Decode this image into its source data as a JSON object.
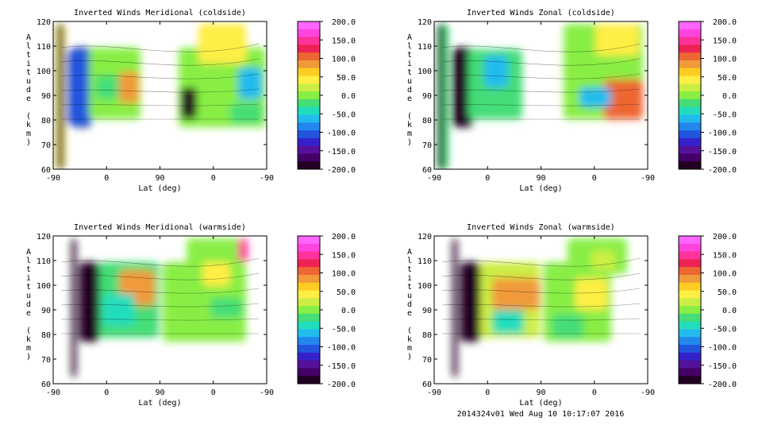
{
  "footer": "2014324v01 Wed Aug 10 10:17:07 2016",
  "colorbar": {
    "labels": [
      "200.0",
      "150.0",
      "100.0",
      "50.0",
      "0.0",
      "-50.0",
      "-100.0",
      "-150.0",
      "-200.0"
    ],
    "colors": [
      "#ff66ff",
      "#ff44dd",
      "#ff3399",
      "#ee2255",
      "#ee6633",
      "#f09a3a",
      "#ffcc22",
      "#ffee44",
      "#ccee44",
      "#88ee44",
      "#44dd77",
      "#22ddbb",
      "#22bbee",
      "#2288ee",
      "#2255dd",
      "#3322cc",
      "#551199",
      "#440066",
      "#220022"
    ]
  },
  "chart_data": [
    {
      "type": "heatmap",
      "title": "Inverted Winds Meridional (coldside)",
      "xlabel": "Lat (deg)",
      "ylabel": "Altitude (km)",
      "xticks": [
        "-90",
        "0",
        "90",
        "0",
        "-90"
      ],
      "yticks": [
        "60",
        "70",
        "80",
        "90",
        "100",
        "110",
        "120"
      ],
      "ylim": [
        60,
        120
      ],
      "colorbar_range": [
        -200,
        200
      ]
    },
    {
      "type": "heatmap",
      "title": "Inverted Winds Zonal (coldside)",
      "xlabel": "Lat (deg)",
      "ylabel": "Altitude (km)",
      "xticks": [
        "-90",
        "0",
        "90",
        "0",
        "-90"
      ],
      "yticks": [
        "60",
        "70",
        "80",
        "90",
        "100",
        "110",
        "120"
      ],
      "ylim": [
        60,
        120
      ],
      "colorbar_range": [
        -200,
        200
      ]
    },
    {
      "type": "heatmap",
      "title": "Inverted Winds Meridional (warmside)",
      "xlabel": "Lat (deg)",
      "ylabel": "Altitude (km)",
      "xticks": [
        "-90",
        "0",
        "90",
        "0",
        "-90"
      ],
      "yticks": [
        "60",
        "70",
        "80",
        "90",
        "100",
        "110",
        "120"
      ],
      "ylim": [
        60,
        120
      ],
      "colorbar_range": [
        -200,
        200
      ]
    },
    {
      "type": "heatmap",
      "title": "Inverted Winds Zonal (warmside)",
      "xlabel": "Lat (deg)",
      "ylabel": "Altitude (km)",
      "xticks": [
        "-90",
        "0",
        "90",
        "0",
        "-90"
      ],
      "yticks": [
        "60",
        "70",
        "80",
        "90",
        "100",
        "110",
        "120"
      ],
      "ylim": [
        60,
        120
      ],
      "colorbar_range": [
        -200,
        200
      ]
    }
  ]
}
